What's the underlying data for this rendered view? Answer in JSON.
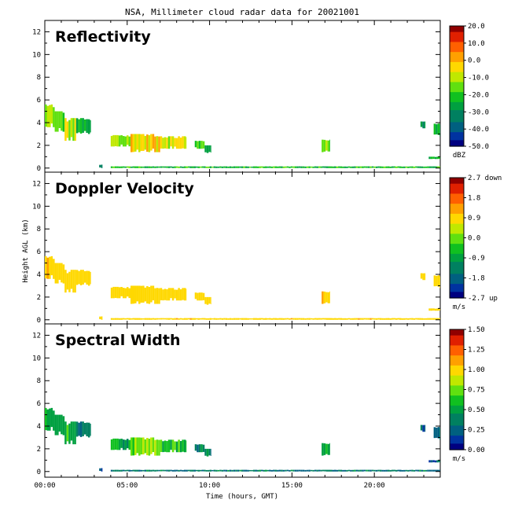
{
  "figure": {
    "title": "NSA, Millimeter cloud radar data for 20021001",
    "ylabel": "Height AGL (km)",
    "xlabel": "Time (hours, GMT)"
  },
  "chart_data": [
    {
      "type": "heatmap",
      "title": "Reflectivity",
      "xlabel": "Time (hours, GMT)",
      "ylabel": "Height AGL (km)",
      "xlim": [
        0,
        24
      ],
      "ylim": [
        -0.5,
        13
      ],
      "xticks": [
        "00:00",
        "05:00",
        "10:00",
        "15:00",
        "20:00"
      ],
      "yticks": [
        "0",
        "2",
        "4",
        "6",
        "8",
        "10",
        "12"
      ],
      "colorbar": {
        "unit": "dBZ",
        "range": [
          -50.0,
          20.0
        ],
        "ticks": [
          "20.0",
          "10.0",
          "0.0",
          "-10.0",
          "-20.0",
          "-30.0",
          "-40.0",
          "-50.0"
        ]
      },
      "grid": false
    },
    {
      "type": "heatmap",
      "title": "Doppler Velocity",
      "xlabel": "Time (hours, GMT)",
      "ylabel": "Height AGL (km)",
      "xlim": [
        0,
        24
      ],
      "ylim": [
        -0.5,
        13
      ],
      "xticks": [
        "00:00",
        "05:00",
        "10:00",
        "15:00",
        "20:00"
      ],
      "yticks": [
        "0",
        "2",
        "4",
        "6",
        "8",
        "10",
        "12"
      ],
      "colorbar": {
        "unit": "m/s",
        "range": [
          -2.7,
          2.7
        ],
        "ticks": [
          "2.7 down",
          "1.8",
          "0.9",
          "0.0",
          "-0.9",
          "-1.8",
          "-2.7 up"
        ]
      },
      "grid": false
    },
    {
      "type": "heatmap",
      "title": "Spectral Width",
      "xlabel": "Time (hours, GMT)",
      "ylabel": "Height AGL (km)",
      "xlim": [
        0,
        24
      ],
      "ylim": [
        -0.5,
        13
      ],
      "xticks": [
        "00:00",
        "05:00",
        "10:00",
        "15:00",
        "20:00"
      ],
      "yticks": [
        "0",
        "2",
        "4",
        "6",
        "8",
        "10",
        "12"
      ],
      "colorbar": {
        "unit": "m/s",
        "range": [
          0.0,
          1.5
        ],
        "ticks": [
          "1.50",
          "1.25",
          "1.00",
          "0.75",
          "0.50",
          "0.25",
          "0.00"
        ]
      },
      "grid": false
    }
  ],
  "clouds": [
    {
      "t0": 0.0,
      "t1": 0.6,
      "bottom": 3.6,
      "top": 5.6,
      "value": 0.55
    },
    {
      "t0": 0.6,
      "t1": 1.2,
      "bottom": 3.2,
      "top": 5.0,
      "value": 0.5
    },
    {
      "t0": 1.2,
      "t1": 1.9,
      "bottom": 2.4,
      "top": 4.4,
      "value": 0.58
    },
    {
      "t0": 1.9,
      "t1": 2.8,
      "bottom": 3.0,
      "top": 4.4,
      "value": 0.35
    },
    {
      "t0": 4.0,
      "t1": 5.2,
      "bottom": 1.9,
      "top": 2.9,
      "value": 0.55
    },
    {
      "t0": 5.2,
      "t1": 7.0,
      "bottom": 1.4,
      "top": 3.0,
      "value": 0.68
    },
    {
      "t0": 7.0,
      "t1": 8.6,
      "bottom": 1.7,
      "top": 2.8,
      "value": 0.6
    },
    {
      "t0": 9.1,
      "t1": 9.7,
      "bottom": 1.7,
      "top": 2.4,
      "value": 0.45
    },
    {
      "t0": 9.7,
      "t1": 10.1,
      "bottom": 1.3,
      "top": 2.0,
      "value": 0.4
    },
    {
      "t0": 16.8,
      "t1": 17.3,
      "bottom": 1.4,
      "top": 2.5,
      "value": 0.5
    },
    {
      "t0": 22.8,
      "t1": 23.1,
      "bottom": 3.5,
      "top": 4.1,
      "value": 0.35
    },
    {
      "t0": 23.6,
      "t1": 24.0,
      "bottom": 2.8,
      "top": 4.0,
      "value": 0.35
    },
    {
      "t0": 23.3,
      "t1": 24.0,
      "bottom": 0.8,
      "top": 1.0,
      "value": 0.35
    },
    {
      "t0": 3.3,
      "t1": 3.5,
      "bottom": 0.0,
      "top": 0.3,
      "value": 0.3
    },
    {
      "t0": 4.0,
      "t1": 24.0,
      "bottom": 0.0,
      "top": 0.15,
      "value": 0.4
    }
  ],
  "colors": {
    "palette": [
      "#000080",
      "#0033a0",
      "#006080",
      "#008060",
      "#00a040",
      "#10c020",
      "#60e010",
      "#c0e800",
      "#ffd800",
      "#ffa000",
      "#ff6000",
      "#e02000",
      "#900000"
    ]
  }
}
